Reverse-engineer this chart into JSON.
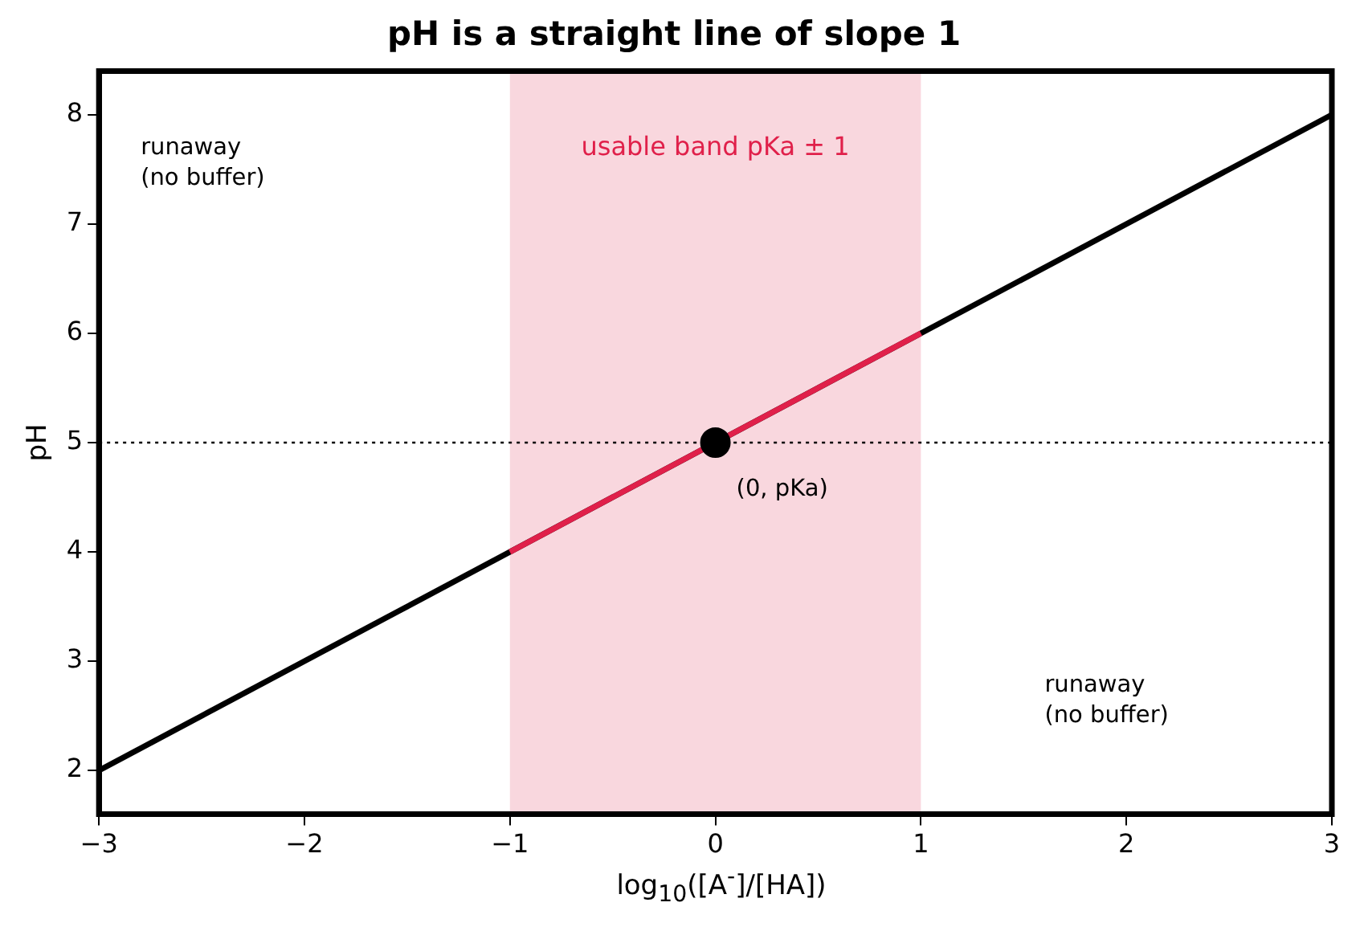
{
  "chart_data": {
    "type": "line",
    "title": "pH is a straight line of slope 1",
    "xlabel": "log$_{10}$([A$^{-}$]/[HA])",
    "ylabel": "pH",
    "xlim": [
      -3,
      3
    ],
    "ylim": [
      1.6,
      8.4
    ],
    "xticks": [
      -3,
      -2,
      -1,
      0,
      1,
      2,
      3
    ],
    "yticks": [
      2,
      3,
      4,
      5,
      6,
      7,
      8
    ],
    "series": [
      {
        "color": "#000000",
        "x": [
          -3,
          3
        ],
        "values": [
          2,
          8
        ]
      },
      {
        "color": "#e0204a",
        "x": [
          -1,
          1
        ],
        "values": [
          4,
          6
        ]
      },
      {
        "type": "scatter",
        "color": "#000000",
        "x": [
          0
        ],
        "values": [
          5
        ],
        "marker": "circle"
      }
    ],
    "bands": [
      {
        "axis": "x",
        "from": -1,
        "to": 1,
        "label": "usable band pKa ± 1",
        "color": "#e0204a"
      }
    ],
    "ref_lines": [
      {
        "axis": "y",
        "value": 5,
        "line_style": "dotted",
        "color": "#000000"
      }
    ],
    "annotations": [
      "runaway\n(no buffer)",
      {
        "text": "(0, pKa)",
        "x": 0,
        "y": 5
      },
      "runaway\n(no buffer)"
    ],
    "grid": false,
    "legend": false
  }
}
